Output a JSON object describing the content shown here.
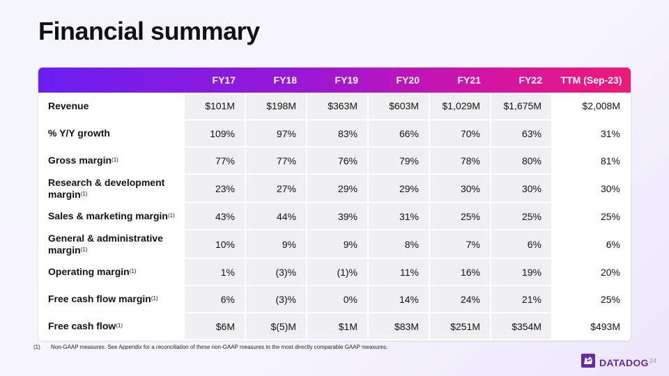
{
  "title": "Financial summary",
  "table": {
    "headers": [
      "",
      "FY17",
      "FY18",
      "FY19",
      "FY20",
      "FY21",
      "FY22",
      "TTM (Sep-23)"
    ],
    "rows": [
      {
        "label": "Revenue",
        "sup": "",
        "values": [
          "$101M",
          "$198M",
          "$363M",
          "$603M",
          "$1,029M",
          "$1,675M",
          "$2,008M"
        ]
      },
      {
        "label": "% Y/Y growth",
        "sup": "",
        "values": [
          "109%",
          "97%",
          "83%",
          "66%",
          "70%",
          "63%",
          "31%"
        ]
      },
      {
        "label": "Gross margin",
        "sup": "(1)",
        "values": [
          "77%",
          "77%",
          "76%",
          "79%",
          "78%",
          "80%",
          "81%"
        ]
      },
      {
        "label": "Research & development margin",
        "sup": "(1)",
        "values": [
          "23%",
          "27%",
          "29%",
          "29%",
          "30%",
          "30%",
          "30%"
        ]
      },
      {
        "label": "Sales & marketing margin",
        "sup": "(1)",
        "values": [
          "43%",
          "44%",
          "39%",
          "31%",
          "25%",
          "25%",
          "25%"
        ]
      },
      {
        "label": "General & administrative margin",
        "sup": "(1)",
        "values": [
          "10%",
          "9%",
          "9%",
          "8%",
          "7%",
          "6%",
          "6%"
        ]
      },
      {
        "label": "Operating margin",
        "sup": "(1)",
        "values": [
          "1%",
          "(3)%",
          "(1)%",
          "11%",
          "16%",
          "19%",
          "20%"
        ]
      },
      {
        "label": "Free cash flow margin",
        "sup": "(1)",
        "values": [
          "6%",
          "(3)%",
          "0%",
          "14%",
          "24%",
          "21%",
          "25%"
        ]
      },
      {
        "label": "Free cash flow",
        "sup": "(1)",
        "values": [
          "$6M",
          "$(5)M",
          "$1M",
          "$83M",
          "$251M",
          "$354M",
          "$493M"
        ]
      }
    ]
  },
  "footnote": {
    "number": "(1)",
    "text": "Non-GAAP measures. See Appendix for a reconciliation of these non-GAAP measures to the most directly comparable GAAP measures."
  },
  "logo": {
    "text": "DATADOG",
    "icon": "datadog-dog-icon",
    "color": "#632ca6"
  },
  "page_number": "24",
  "colors": {
    "header_gradient": [
      "#6a1ff2",
      "#ee1a78"
    ],
    "cell_bg": "#f0f0f2"
  }
}
